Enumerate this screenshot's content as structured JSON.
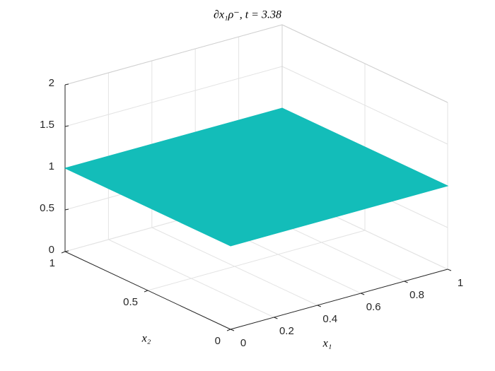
{
  "chart_data": {
    "type": "surface",
    "title": "∂x₁ρ⁻,  t = 3.38",
    "x_label": "x₁",
    "y_label": "x₂",
    "x": [
      0,
      1
    ],
    "y": [
      0,
      1
    ],
    "z": [
      [
        1,
        1
      ],
      [
        1,
        1
      ]
    ],
    "color": "#13bdb9",
    "xlim": [
      0,
      1
    ],
    "ylim": [
      0,
      1
    ],
    "zlim": [
      0,
      2
    ],
    "xticks": [
      0,
      0.2,
      0.4,
      0.6,
      0.8,
      1
    ],
    "yticks": [
      0,
      0.5,
      1
    ],
    "zticks": [
      0,
      0.5,
      1,
      1.5,
      2
    ],
    "grid": true
  }
}
